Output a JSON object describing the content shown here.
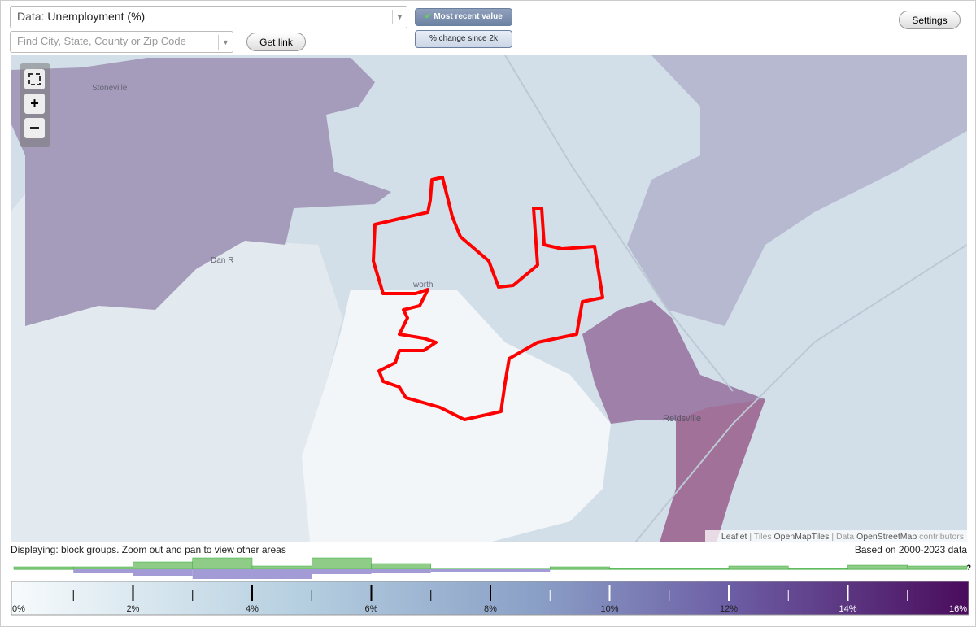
{
  "header": {
    "data_label": "Data:",
    "data_value": "Unemployment (%)",
    "search_placeholder": "Find City, State, County or Zip Code",
    "get_link": "Get link",
    "mode_recent": "Most recent value",
    "mode_change": "% change since 2k",
    "settings": "Settings"
  },
  "map": {
    "places": [
      "Stoneville",
      "Dan R",
      "worth",
      "Reidsville"
    ],
    "attribution": {
      "leaflet": "Leaflet",
      "sep1": " | Tiles ",
      "tiles": "OpenMapTiles",
      "sep2": " | Data ",
      "osm": "OpenStreetMap",
      "suffix": " contributors"
    }
  },
  "footer": {
    "displaying": "Displaying: block groups. Zoom out and pan to view other areas",
    "based_on": "Based on 2000-2023 data",
    "help": "?"
  },
  "histogram": {
    "current": [
      3,
      3,
      9,
      14,
      4,
      14,
      7,
      0,
      0,
      3,
      1,
      1,
      4,
      1,
      5,
      4
    ],
    "change": [
      0,
      4,
      8,
      12,
      12,
      6,
      4,
      3,
      3,
      0,
      0,
      0,
      0,
      0,
      0,
      0
    ]
  },
  "legend": {
    "min": 0,
    "max": 16,
    "ticks": [
      {
        "value": 0,
        "label": "0%"
      },
      {
        "value": 2,
        "label": "2%"
      },
      {
        "value": 4,
        "label": "4%"
      },
      {
        "value": 6,
        "label": "6%"
      },
      {
        "value": 8,
        "label": "8%"
      },
      {
        "value": 10,
        "label": "10%"
      },
      {
        "value": 12,
        "label": "12%"
      },
      {
        "value": 14,
        "label": "14%"
      },
      {
        "value": 16,
        "label": "16%"
      }
    ],
    "minor_ticks": [
      1,
      3,
      5,
      7,
      9,
      11,
      13,
      15
    ]
  }
}
